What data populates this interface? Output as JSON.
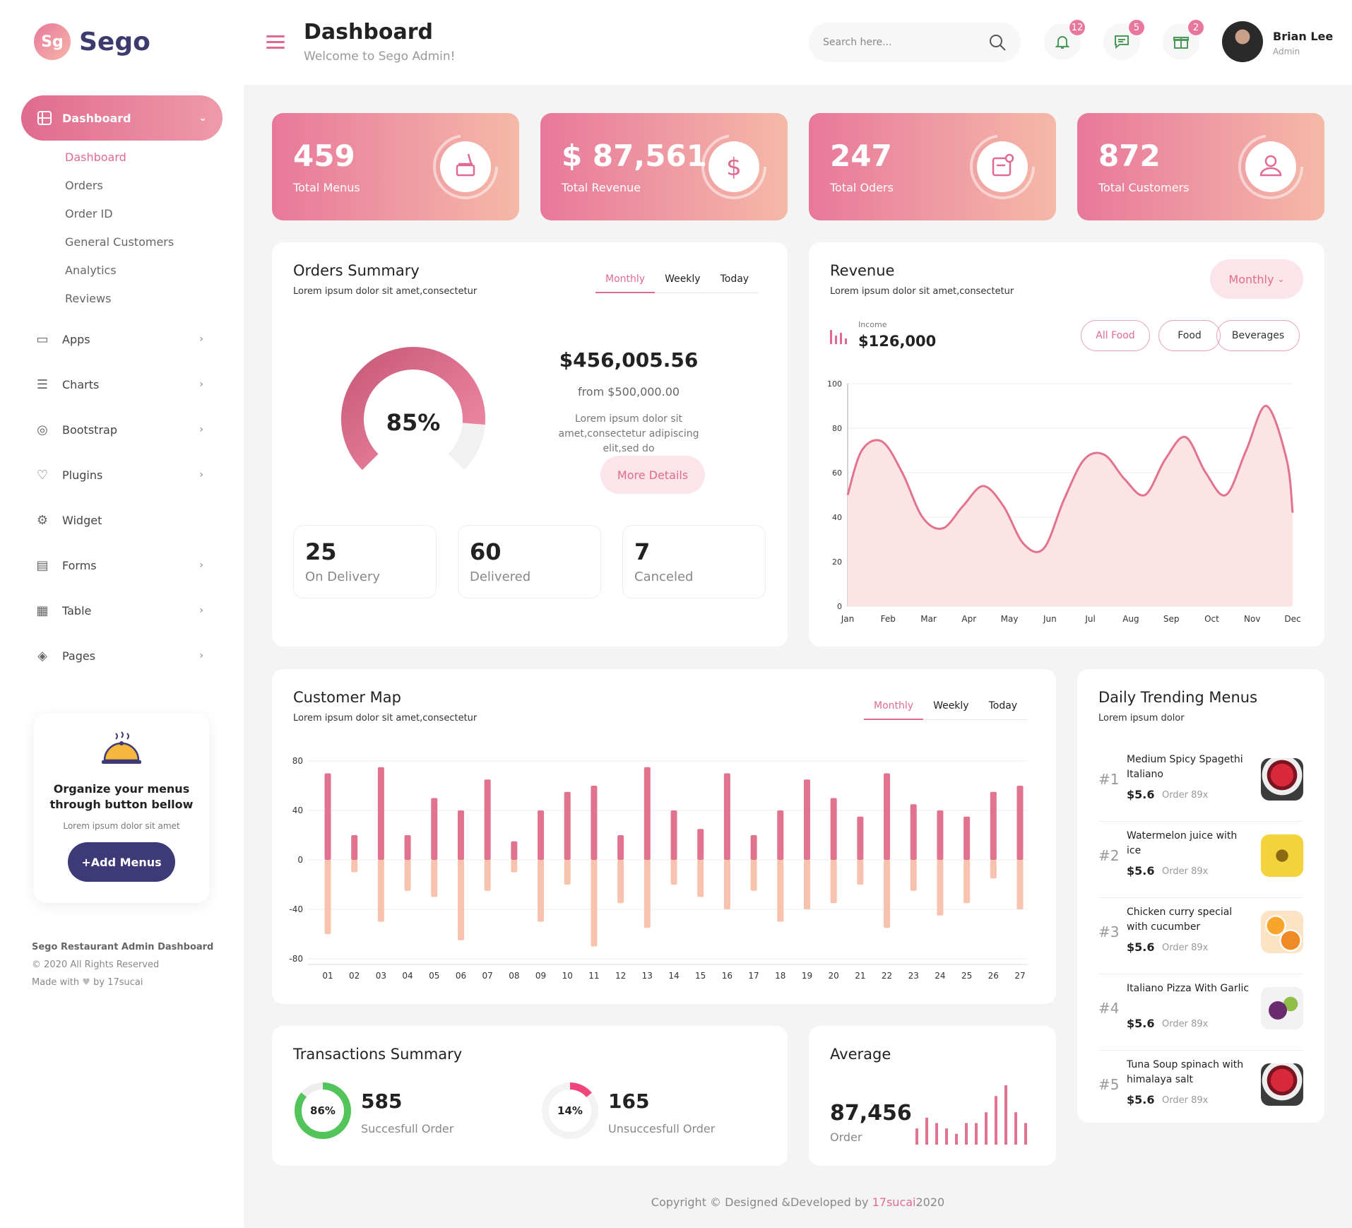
{
  "brand": {
    "logo_mark": "Sg",
    "name": "Sego"
  },
  "sidebar": {
    "active": {
      "label": "Dashboard",
      "icon": "dashboard-icon"
    },
    "sub_items": [
      "Dashboard",
      "Orders",
      "Order ID",
      "General Customers",
      "Analytics",
      "Reviews"
    ],
    "items": [
      {
        "label": "Apps",
        "icon": "monitor-icon",
        "has_children": true
      },
      {
        "label": "Charts",
        "icon": "sliders-icon",
        "has_children": true
      },
      {
        "label": "Bootstrap",
        "icon": "globe-icon",
        "has_children": true
      },
      {
        "label": "Plugins",
        "icon": "heart-icon",
        "has_children": true
      },
      {
        "label": "Widget",
        "icon": "gear-icon",
        "has_children": false
      },
      {
        "label": "Forms",
        "icon": "form-icon",
        "has_children": true
      },
      {
        "label": "Table",
        "icon": "table-icon",
        "has_children": true
      },
      {
        "label": "Pages",
        "icon": "layers-icon",
        "has_children": true
      }
    ],
    "promo": {
      "title": "Organize your menus through button bellow",
      "text": "Lorem ipsum dolor sit amet",
      "button": "+Add Menus"
    },
    "footer": {
      "title": "Sego Restaurant Admin Dashboard",
      "copyright": "© 2020 All Rights Reserved",
      "made_with": "Made with",
      "by": "by 17sucai"
    }
  },
  "header": {
    "title": "Dashboard",
    "subtitle": "Welcome to Sego Admin!",
    "search_placeholder": "Search here...",
    "badges": {
      "notifications": "12",
      "messages": "5",
      "gifts": "2"
    },
    "user": {
      "name": "Brian Lee",
      "role": "Admin"
    }
  },
  "stats": [
    {
      "value": "459",
      "label": "Total Menus",
      "icon": "food-icon"
    },
    {
      "value": "$ 87,561",
      "label": "Total Revenue",
      "icon": "dollar-icon"
    },
    {
      "value": "247",
      "label": "Total Oders",
      "icon": "orders-icon"
    },
    {
      "value": "872",
      "label": "Total Customers",
      "icon": "customers-icon"
    }
  ],
  "orders_summary": {
    "title": "Orders Summary",
    "subtitle": "Lorem ipsum dolor sit amet,consectetur",
    "tabs": [
      "Monthly",
      "Weekly",
      "Today"
    ],
    "percent": "85%",
    "percent_value": 85,
    "amount": "$456,005.56",
    "from": "from $500,000.00",
    "text": "Lorem ipsum dolor sit amet,consectetur adipiscing elit,sed do",
    "more": "More Details",
    "mini": [
      {
        "value": "25",
        "label": "On Delivery"
      },
      {
        "value": "60",
        "label": "Delivered"
      },
      {
        "value": "7",
        "label": "Canceled"
      }
    ]
  },
  "revenue": {
    "title": "Revenue",
    "subtitle": "Lorem ipsum dolor sit amet,consectetur",
    "dropdown": "Monthly",
    "income_label": "Income",
    "income": "$126,000",
    "filters": [
      "All Food",
      "Food",
      "Beverages"
    ]
  },
  "customer_map": {
    "title": "Customer Map",
    "subtitle": "Lorem ipsum dolor sit amet,consectetur",
    "tabs": [
      "Monthly",
      "Weekly",
      "Today"
    ]
  },
  "trending": {
    "title": "Daily Trending Menus",
    "subtitle": "Lorem ipsum dolor",
    "items": [
      {
        "rank": "#1",
        "name": "Medium Spicy Spagethi Italiano",
        "price": "$5.6",
        "order": "Order 89x"
      },
      {
        "rank": "#2",
        "name": "Watermelon juice with ice",
        "price": "$5.6",
        "order": "Order 89x"
      },
      {
        "rank": "#3",
        "name": "Chicken curry special with cucumber",
        "price": "$5.6",
        "order": "Order 89x"
      },
      {
        "rank": "#4",
        "name": "Italiano Pizza With Garlic",
        "price": "$5.6",
        "order": "Order 89x"
      },
      {
        "rank": "#5",
        "name": "Tuna Soup spinach with himalaya salt",
        "price": "$5.6",
        "order": "Order 89x"
      }
    ]
  },
  "transactions": {
    "title": "Transactions Summary",
    "success": {
      "percent": "86%",
      "percent_value": 86,
      "value": "585",
      "label": "Succesfull Order"
    },
    "fail": {
      "percent": "14%",
      "percent_value": 14,
      "value": "165",
      "label": "Unsuccesfull Order"
    }
  },
  "average": {
    "title": "Average",
    "value": "87,456",
    "label": "Order",
    "bars": [
      3,
      5,
      4,
      3,
      2,
      4,
      4,
      6,
      9,
      11,
      6,
      4
    ]
  },
  "footer": {
    "prefix": "Copyright © Designed &Developed by ",
    "highlight": "17sucai",
    "suffix": "2020"
  },
  "colors": {
    "accent": "#e06b8f",
    "accent_light": "#f5b9a8",
    "navy": "#3d3a77",
    "green": "#52c45a",
    "red": "#f0457a"
  },
  "chart_data": [
    {
      "type": "area",
      "title": "Revenue",
      "categories": [
        "Jan",
        "Feb",
        "Mar",
        "Apr",
        "May",
        "Jun",
        "Jul",
        "Aug",
        "Sep",
        "Oct",
        "Nov",
        "Dec"
      ],
      "x": [
        0,
        0.35,
        0.85,
        1.35,
        1.85,
        2.35,
        2.85,
        3.35,
        3.85,
        4.35,
        4.85,
        5.35,
        5.85,
        6.35,
        6.85,
        7.35,
        7.85,
        8.35,
        8.85,
        9.35,
        9.85,
        10.35,
        10.85,
        11
      ],
      "values": [
        50,
        70,
        74,
        60,
        40,
        35,
        45,
        54,
        45,
        28,
        26,
        48,
        66,
        68,
        57,
        50,
        66,
        76,
        60,
        50,
        70,
        90,
        66,
        42
      ],
      "ylim": [
        0,
        100
      ],
      "yticks": [
        0,
        20,
        40,
        60,
        80,
        100
      ]
    },
    {
      "type": "bar",
      "title": "Customer Map",
      "categories": [
        "01",
        "02",
        "03",
        "04",
        "05",
        "06",
        "07",
        "08",
        "09",
        "10",
        "11",
        "12",
        "13",
        "14",
        "15",
        "16",
        "17",
        "18",
        "19",
        "20",
        "21",
        "22",
        "23",
        "24",
        "25",
        "26",
        "27"
      ],
      "series": [
        {
          "name": "positive",
          "values": [
            70,
            20,
            75,
            20,
            50,
            40,
            65,
            15,
            40,
            55,
            60,
            20,
            75,
            40,
            25,
            70,
            20,
            40,
            65,
            50,
            35,
            70,
            45,
            40,
            35,
            55,
            60
          ]
        },
        {
          "name": "negative",
          "values": [
            -60,
            -10,
            -50,
            -25,
            -30,
            -65,
            -25,
            -10,
            -50,
            -20,
            -70,
            -35,
            -55,
            -20,
            -30,
            -40,
            -25,
            -50,
            -40,
            -35,
            -20,
            -55,
            -25,
            -45,
            -35,
            -15,
            -40
          ]
        }
      ],
      "ylim": [
        -80,
        80
      ],
      "yticks": [
        -80,
        -40,
        0,
        40,
        80
      ]
    }
  ]
}
